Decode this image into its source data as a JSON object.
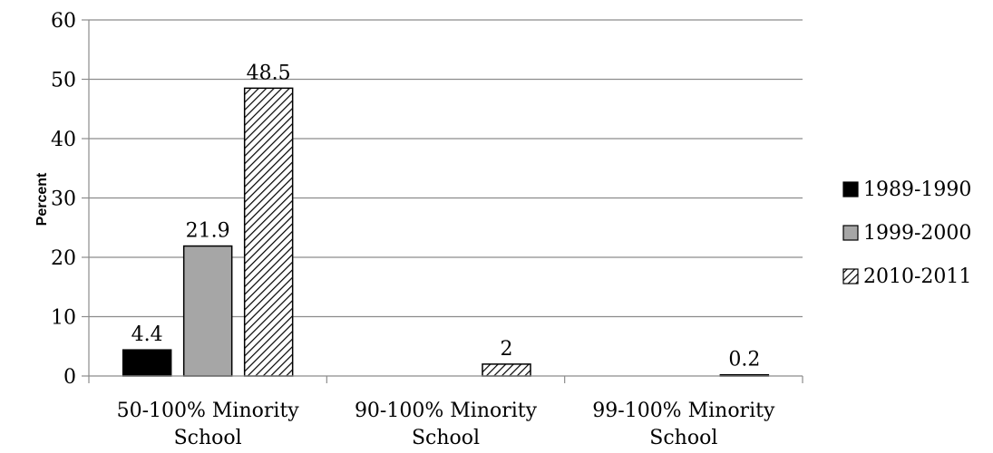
{
  "chart_data": {
    "type": "bar",
    "ylabel": "Percent",
    "ylim": [
      0,
      60
    ],
    "yticks": [
      0,
      10,
      20,
      30,
      40,
      50,
      60
    ],
    "grid": true,
    "legend_position": "right",
    "categories": [
      [
        "50-100% Minority",
        "School"
      ],
      [
        "90-100% Minority",
        "School"
      ],
      [
        "99-100% Minority",
        "School"
      ]
    ],
    "series": [
      {
        "name": "1989-1990",
        "values": [
          4.4,
          null,
          null
        ],
        "fill": "#000000",
        "pattern": "solid"
      },
      {
        "name": "1999-2000",
        "values": [
          21.9,
          null,
          null
        ],
        "fill": "#a6a6a6",
        "pattern": "solid"
      },
      {
        "name": "2010-2011",
        "values": [
          48.5,
          2,
          0.2
        ],
        "fill": "#ffffff",
        "pattern": "diagonal-hatch"
      }
    ],
    "data_labels": [
      {
        "series": 0,
        "category": 0,
        "text": "4.4"
      },
      {
        "series": 1,
        "category": 0,
        "text": "21.9"
      },
      {
        "series": 2,
        "category": 0,
        "text": "48.5"
      },
      {
        "series": 2,
        "category": 1,
        "text": "2"
      },
      {
        "series": 2,
        "category": 2,
        "text": "0.2"
      }
    ]
  }
}
